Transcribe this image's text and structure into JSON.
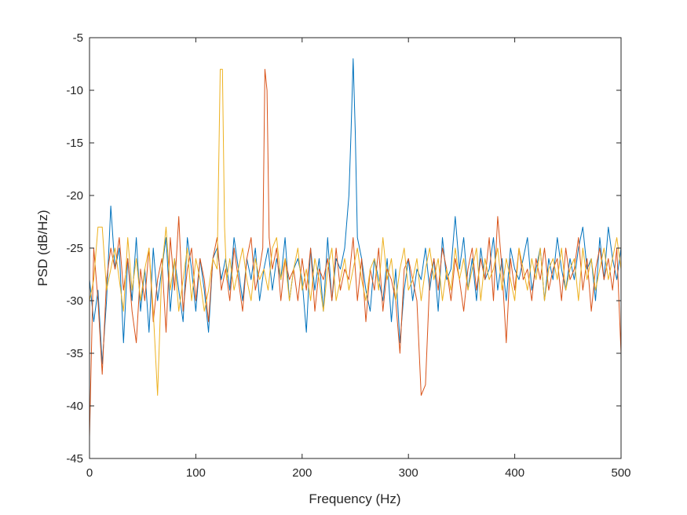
{
  "chart_data": {
    "type": "line",
    "title": "",
    "xlabel": "Frequency (Hz)",
    "ylabel": "PSD (dB/Hz)",
    "xlim": [
      0,
      500
    ],
    "ylim": [
      -45,
      -5
    ],
    "xticks": [
      0,
      100,
      200,
      300,
      400,
      500
    ],
    "yticks": [
      -45,
      -40,
      -35,
      -30,
      -25,
      -20,
      -15,
      -10,
      -5
    ],
    "xtick_labels": [
      "0",
      "100",
      "200",
      "300",
      "400",
      "500"
    ],
    "ytick_labels": [
      "-45",
      "-40",
      "-35",
      "-30",
      "-25",
      "-20",
      "-15",
      "-10",
      "-5"
    ],
    "grid": false,
    "legend": "none",
    "series": [
      {
        "color": "#0072BD",
        "x": [
          0,
          4,
          8,
          12,
          16,
          20,
          24,
          28,
          32,
          36,
          40,
          44,
          48,
          52,
          56,
          60,
          64,
          68,
          72,
          76,
          80,
          84,
          88,
          92,
          96,
          100,
          104,
          108,
          112,
          116,
          120,
          124,
          128,
          132,
          136,
          140,
          144,
          148,
          152,
          156,
          160,
          164,
          168,
          172,
          176,
          180,
          184,
          188,
          192,
          196,
          200,
          204,
          208,
          212,
          216,
          220,
          224,
          228,
          232,
          236,
          240,
          244,
          246,
          248,
          250,
          252,
          254,
          256,
          260,
          264,
          268,
          272,
          276,
          280,
          284,
          288,
          292,
          296,
          300,
          304,
          308,
          312,
          316,
          320,
          324,
          328,
          332,
          336,
          340,
          344,
          348,
          352,
          356,
          360,
          364,
          368,
          372,
          376,
          380,
          384,
          388,
          392,
          396,
          400,
          404,
          408,
          412,
          416,
          420,
          424,
          428,
          432,
          436,
          440,
          444,
          448,
          452,
          456,
          460,
          464,
          468,
          472,
          476,
          480,
          484,
          488,
          492,
          496,
          500
        ],
        "y": [
          -28,
          -32,
          -29,
          -36,
          -30,
          -21,
          -27,
          -25,
          -34,
          -26,
          -30,
          -24,
          -31,
          -27,
          -33,
          -25,
          -30,
          -27,
          -24,
          -31,
          -26,
          -29,
          -32,
          -24,
          -27,
          -31,
          -26,
          -29,
          -33,
          -26,
          -25,
          -28,
          -26,
          -29,
          -24,
          -27,
          -30,
          -26,
          -28,
          -25,
          -30,
          -27,
          -25,
          -29,
          -26,
          -28,
          -24,
          -30,
          -27,
          -26,
          -28,
          -33,
          -25,
          -29,
          -26,
          -31,
          -24,
          -30,
          -26,
          -27,
          -25,
          -20,
          -14,
          -7,
          -14,
          -24,
          -25,
          -26,
          -29,
          -31,
          -26,
          -28,
          -30,
          -26,
          -32,
          -27,
          -34,
          -29,
          -26,
          -30,
          -27,
          -28,
          -25,
          -29,
          -26,
          -31,
          -24,
          -28,
          -27,
          -22,
          -27,
          -24,
          -29,
          -26,
          -30,
          -25,
          -28,
          -27,
          -24,
          -29,
          -26,
          -30,
          -25,
          -27,
          -28,
          -26,
          -24,
          -29,
          -27,
          -25,
          -30,
          -26,
          -28,
          -24,
          -27,
          -29,
          -26,
          -28,
          -25,
          -23,
          -27,
          -26,
          -30,
          -24,
          -28,
          -23,
          -26,
          -28,
          -25
        ]
      },
      {
        "color": "#D95319",
        "x": [
          0,
          4,
          8,
          12,
          16,
          20,
          24,
          28,
          32,
          36,
          40,
          44,
          48,
          52,
          56,
          60,
          64,
          68,
          72,
          76,
          80,
          84,
          88,
          92,
          96,
          100,
          104,
          108,
          112,
          116,
          120,
          124,
          128,
          132,
          136,
          140,
          144,
          148,
          152,
          156,
          160,
          163,
          165,
          167,
          169,
          172,
          176,
          180,
          184,
          188,
          192,
          196,
          200,
          204,
          208,
          212,
          216,
          220,
          224,
          228,
          232,
          236,
          240,
          244,
          248,
          252,
          256,
          260,
          264,
          268,
          272,
          276,
          280,
          284,
          288,
          292,
          296,
          300,
          304,
          308,
          312,
          316,
          320,
          324,
          328,
          332,
          336,
          340,
          344,
          348,
          352,
          356,
          360,
          364,
          368,
          372,
          376,
          380,
          384,
          388,
          392,
          396,
          400,
          404,
          408,
          412,
          416,
          420,
          424,
          428,
          432,
          436,
          440,
          444,
          448,
          452,
          456,
          460,
          464,
          468,
          472,
          476,
          480,
          484,
          488,
          492,
          496,
          500
        ],
        "y": [
          -43,
          -25,
          -30,
          -37,
          -28,
          -25,
          -27,
          -24,
          -29,
          -26,
          -31,
          -34,
          -27,
          -30,
          -25,
          -32,
          -28,
          -26,
          -33,
          -24,
          -29,
          -22,
          -31,
          -27,
          -25,
          -30,
          -26,
          -28,
          -32,
          -26,
          -24,
          -29,
          -27,
          -30,
          -25,
          -28,
          -31,
          -26,
          -24,
          -29,
          -27,
          -25,
          -8,
          -10,
          -24,
          -27,
          -25,
          -30,
          -26,
          -28,
          -27,
          -30,
          -26,
          -29,
          -25,
          -31,
          -27,
          -28,
          -26,
          -30,
          -25,
          -29,
          -27,
          -28,
          -24,
          -30,
          -26,
          -32,
          -27,
          -29,
          -25,
          -31,
          -27,
          -28,
          -30,
          -35,
          -27,
          -26,
          -28,
          -30,
          -39,
          -38,
          -28,
          -26,
          -29,
          -25,
          -27,
          -30,
          -26,
          -28,
          -31,
          -27,
          -25,
          -29,
          -26,
          -28,
          -24,
          -30,
          -22,
          -27,
          -34,
          -26,
          -29,
          -25,
          -28,
          -27,
          -30,
          -26,
          -28,
          -25,
          -29,
          -27,
          -26,
          -30,
          -25,
          -28,
          -27,
          -24,
          -29,
          -26,
          -31,
          -27,
          -25,
          -28,
          -26,
          -29,
          -25,
          -35
        ]
      },
      {
        "color": "#EDB120",
        "x": [
          0,
          4,
          8,
          12,
          16,
          20,
          24,
          28,
          32,
          36,
          40,
          44,
          48,
          52,
          56,
          60,
          64,
          68,
          72,
          76,
          80,
          84,
          88,
          92,
          96,
          100,
          104,
          108,
          112,
          116,
          120,
          123,
          125,
          127,
          129,
          132,
          136,
          140,
          144,
          148,
          152,
          156,
          160,
          164,
          168,
          172,
          176,
          180,
          184,
          188,
          192,
          196,
          200,
          204,
          208,
          212,
          216,
          220,
          224,
          228,
          232,
          236,
          240,
          244,
          248,
          252,
          256,
          260,
          264,
          268,
          272,
          276,
          280,
          284,
          288,
          292,
          296,
          300,
          304,
          308,
          312,
          316,
          320,
          324,
          328,
          332,
          336,
          340,
          344,
          348,
          352,
          356,
          360,
          364,
          368,
          372,
          376,
          380,
          384,
          388,
          392,
          396,
          400,
          404,
          408,
          412,
          416,
          420,
          424,
          428,
          432,
          436,
          440,
          444,
          448,
          452,
          456,
          460,
          464,
          468,
          472,
          476,
          480,
          484,
          488,
          492,
          496,
          500
        ],
        "y": [
          -30,
          -28,
          -23,
          -23,
          -29,
          -27,
          -25,
          -28,
          -31,
          -24,
          -29,
          -26,
          -30,
          -27,
          -25,
          -31,
          -39,
          -27,
          -23,
          -29,
          -26,
          -31,
          -28,
          -25,
          -30,
          -26,
          -28,
          -31,
          -29,
          -26,
          -27,
          -8,
          -8,
          -23,
          -28,
          -26,
          -29,
          -27,
          -25,
          -28,
          -30,
          -26,
          -28,
          -27,
          -29,
          -25,
          -24,
          -28,
          -26,
          -30,
          -27,
          -25,
          -29,
          -27,
          -30,
          -26,
          -28,
          -31,
          -27,
          -25,
          -30,
          -28,
          -26,
          -29,
          -27,
          -25,
          -28,
          -30,
          -27,
          -26,
          -29,
          -24,
          -28,
          -26,
          -30,
          -27,
          -25,
          -29,
          -28,
          -26,
          -30,
          -27,
          -25,
          -28,
          -26,
          -30,
          -27,
          -29,
          -25,
          -28,
          -26,
          -29,
          -27,
          -25,
          -30,
          -26,
          -28,
          -27,
          -25,
          -29,
          -26,
          -28,
          -30,
          -25,
          -27,
          -29,
          -26,
          -28,
          -25,
          -30,
          -27,
          -26,
          -28,
          -25,
          -29,
          -27,
          -26,
          -30,
          -25,
          -28,
          -26,
          -29,
          -27,
          -25,
          -28,
          -26,
          -24,
          -27
        ]
      }
    ]
  }
}
